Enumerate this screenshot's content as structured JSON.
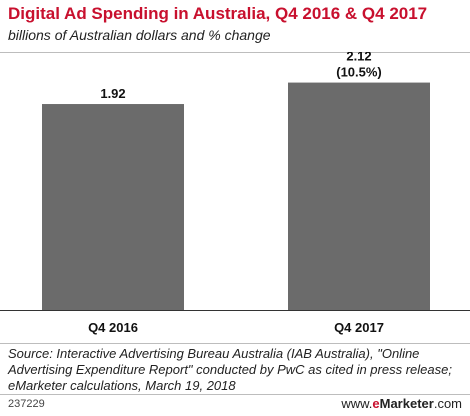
{
  "header": {
    "title": "Digital Ad Spending in Australia, Q4 2016 & Q4 2017",
    "subtitle": "billions of Australian dollars and % change"
  },
  "chart_data": {
    "type": "bar",
    "categories": [
      "Q4 2016",
      "Q4 2017"
    ],
    "values": [
      1.92,
      2.12
    ],
    "data_labels": [
      "1.92",
      "2.12"
    ],
    "change_labels": [
      "",
      "(10.5%)"
    ],
    "title": "Digital Ad Spending in Australia, Q4 2016 & Q4 2017",
    "subtitle": "billions of Australian dollars and % change",
    "ylim": [
      0,
      2.2
    ],
    "grid": false,
    "bar_color": "#6b6b6b"
  },
  "footer": {
    "source": "Source: Interactive Advertising Bureau Australia (IAB Australia), \"Online Advertising Expenditure Report\" conducted by PwC as cited in press release; eMarketer calculations, March 19, 2018",
    "chart_id": "237229",
    "brand_e": "e",
    "brand_rest": "Marketer",
    "brand_domain": ".com"
  },
  "colors": {
    "title": "#c8102e",
    "bar": "#6b6b6b",
    "text": "#222222"
  }
}
